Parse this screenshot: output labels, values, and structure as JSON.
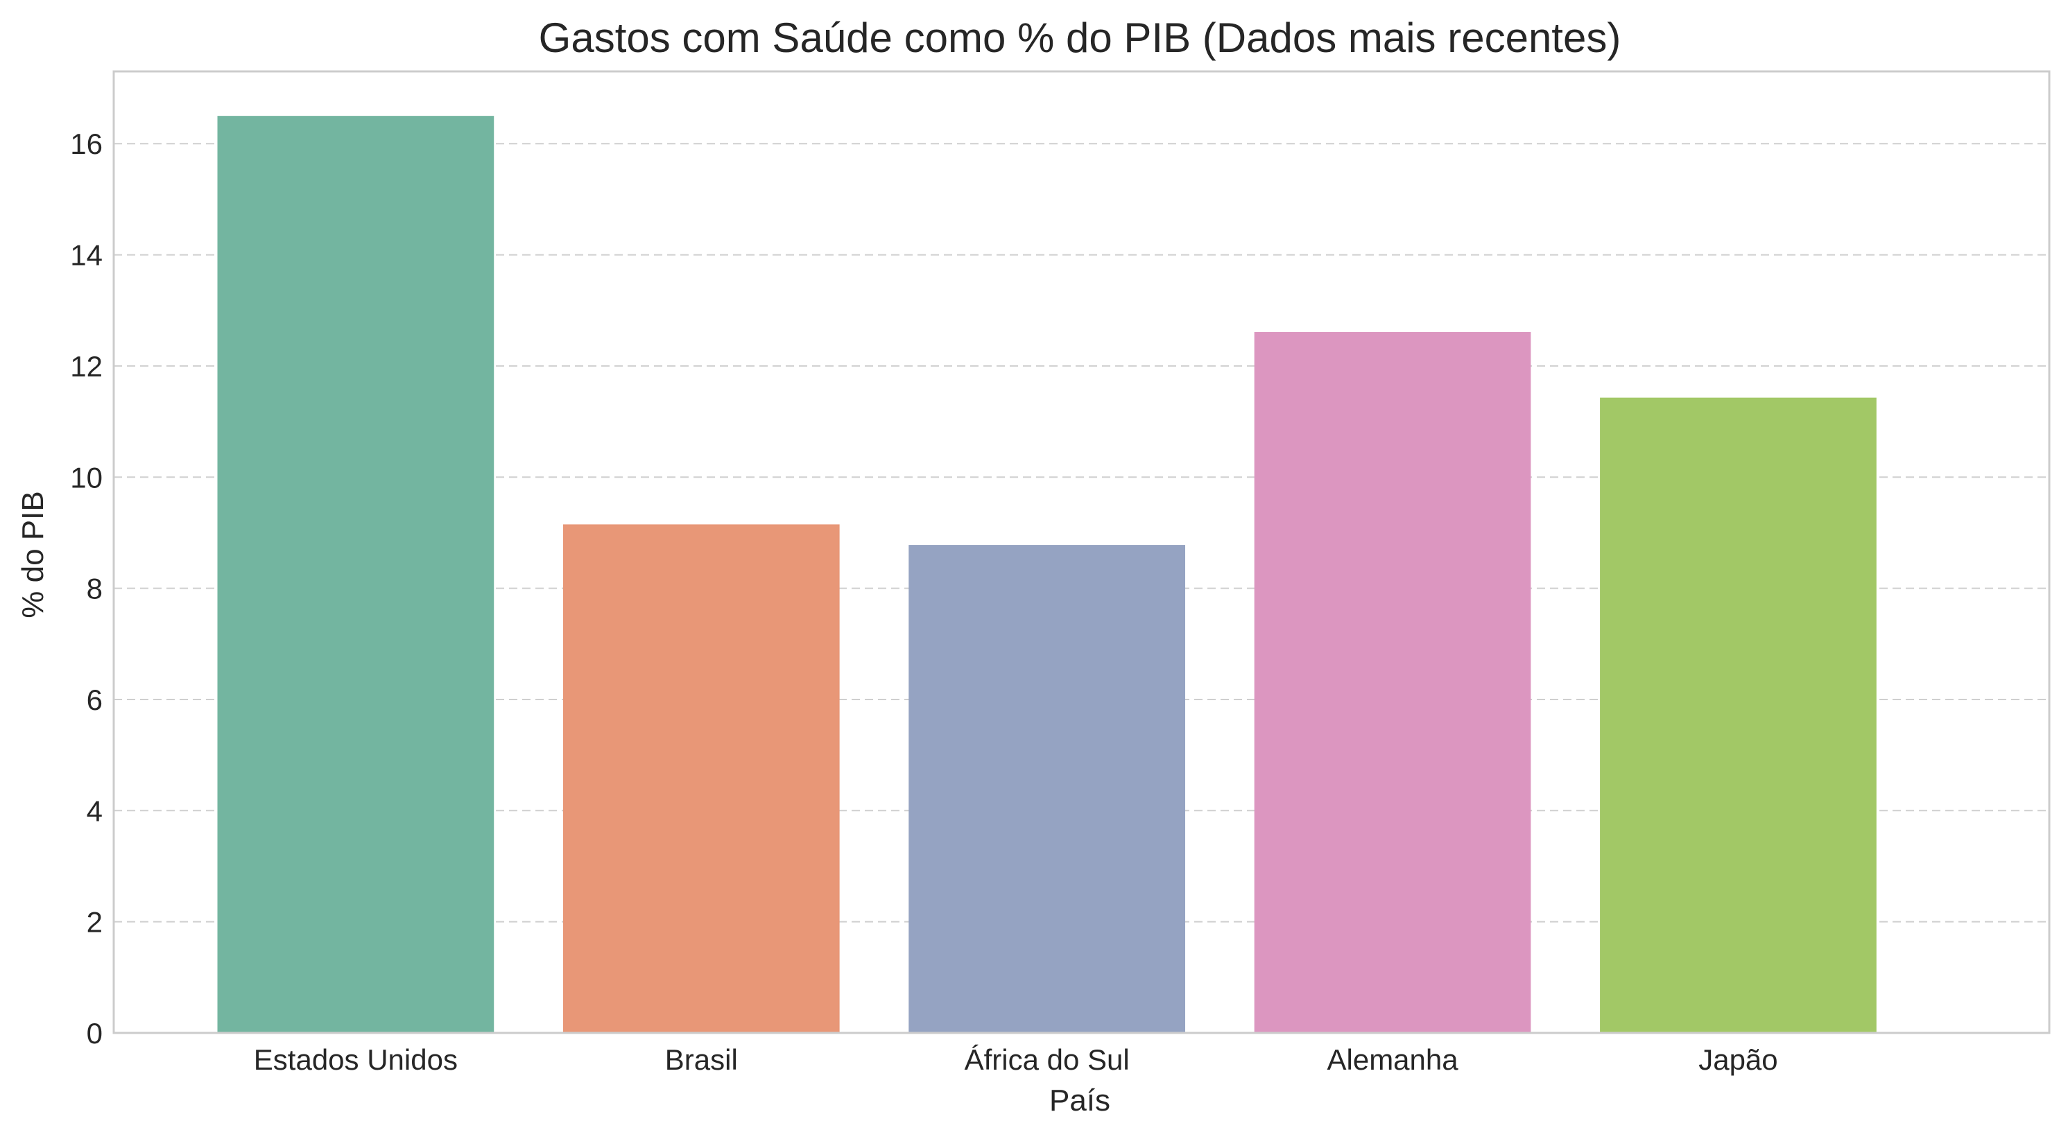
{
  "chart_data": {
    "type": "bar",
    "title": "Gastos com Saúde como % do PIB (Dados mais recentes)",
    "xlabel": "País",
    "ylabel": "% do PIB",
    "categories": [
      "Estados Unidos",
      "Brasil",
      "África do Sul",
      "Alemanha",
      "Japão"
    ],
    "values": [
      16.5,
      9.15,
      8.78,
      12.61,
      11.43
    ],
    "colors": [
      "#73b5a0",
      "#e89777",
      "#95a3c2",
      "#dc96c0",
      "#a2c866"
    ],
    "ylim": [
      0,
      17.3
    ],
    "yticks": [
      0,
      2,
      4,
      6,
      8,
      10,
      12,
      14,
      16
    ],
    "grid": true,
    "grid_axis": "y",
    "grid_style": "dashed",
    "legend": "none"
  }
}
